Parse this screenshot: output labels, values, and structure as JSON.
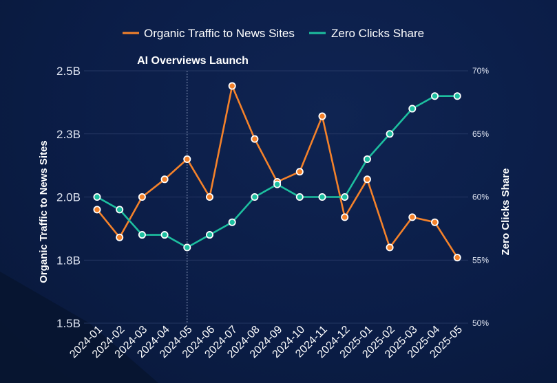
{
  "chart_data": {
    "type": "line",
    "categories": [
      "2024-01",
      "2024-02",
      "2024-03",
      "2024-04",
      "2024-05",
      "2024-06",
      "2024-07",
      "2024-08",
      "2024-09",
      "2024-10",
      "2024-11",
      "2024-12",
      "2025-01",
      "2025-02",
      "2025-03",
      "2025-04",
      "2025-05"
    ],
    "series": [
      {
        "name": "Organic Traffic to News Sites",
        "axis": "left",
        "color": "#f5822a",
        "values": [
          1.95,
          1.84,
          2.0,
          2.07,
          2.15,
          2.0,
          2.44,
          2.23,
          2.06,
          2.1,
          2.32,
          1.92,
          2.07,
          1.8,
          1.92,
          1.9,
          1.76
        ]
      },
      {
        "name": "Zero Clicks Share",
        "axis": "right",
        "color": "#1dbf9f",
        "values": [
          60,
          59,
          57,
          57,
          56,
          57,
          58,
          60,
          61,
          60,
          60,
          60,
          63,
          65,
          67,
          68,
          68
        ]
      }
    ],
    "left_axis": {
      "label": "Organic Traffic to News Sites",
      "ylim": [
        1.5,
        2.5
      ],
      "tick_values": [
        1.5,
        1.75,
        2.0,
        2.25,
        2.5
      ],
      "tick_labels": [
        "1.5B",
        "1.8B",
        "2.0B",
        "2.3B",
        "2.5B"
      ]
    },
    "right_axis": {
      "label": "Zero Clicks Share",
      "ylim": [
        50,
        70
      ],
      "tick_values": [
        50,
        55,
        60,
        65,
        70
      ],
      "tick_labels": [
        "50%",
        "55%",
        "60%",
        "65%",
        "70%"
      ]
    },
    "annotation": {
      "label": "AI Overviews Launch",
      "category": "2024-05"
    },
    "grid": true,
    "legend": "top-center"
  }
}
